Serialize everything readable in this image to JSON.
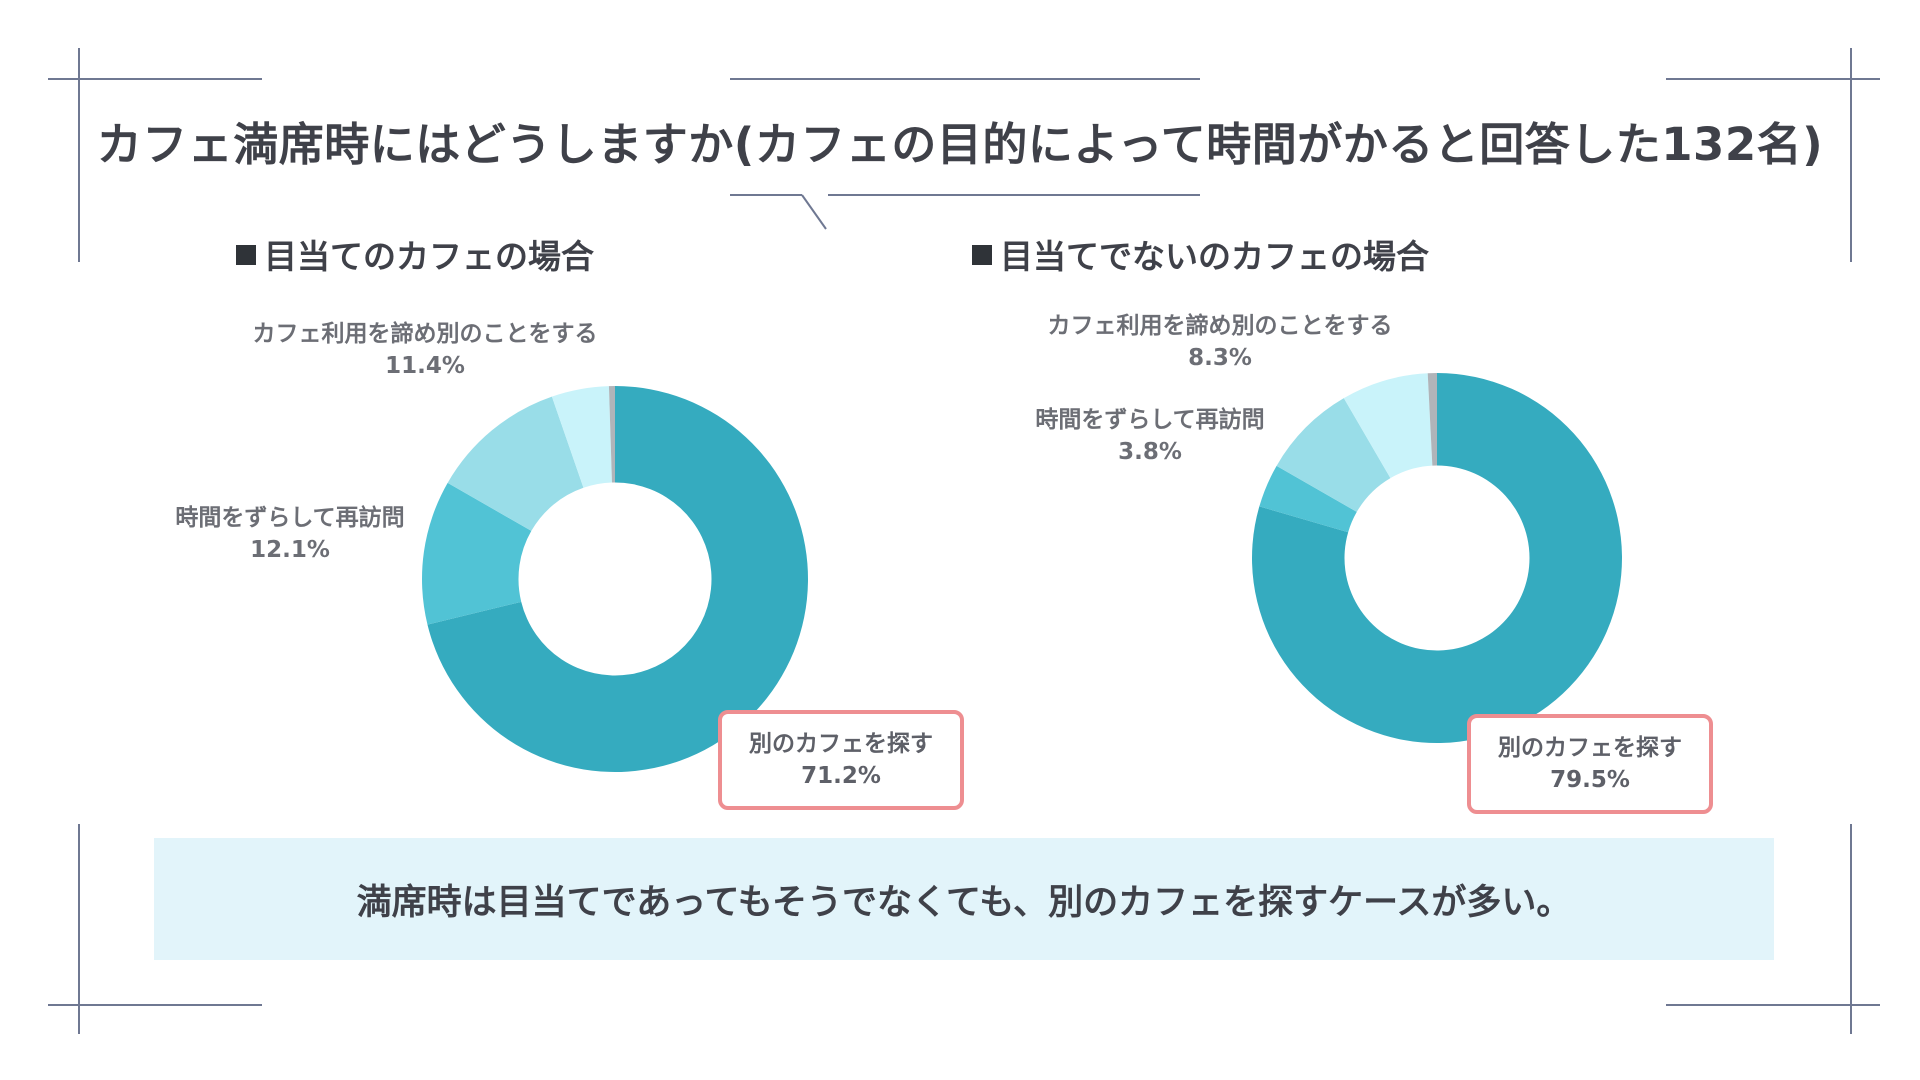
{
  "title": "カフェ満席時にはどうしますか(カフェの目的によって時間がかると回答した132名)",
  "summary": "満席時は目当てであってもそうでなくても、別のカフェを探すケースが多い。",
  "colors": {
    "frame": "#6f7892",
    "highlight_border": "#ee8e91",
    "summary_background": "#e2f4fa"
  },
  "chart_data": [
    {
      "type": "pie",
      "title": "目当てのカフェの場合",
      "donut": true,
      "unit": "%",
      "slices": [
        {
          "label": "別のカフェを探す",
          "value": 71.2,
          "value_label": "71.2%",
          "color": "#35abbf",
          "highlighted": true
        },
        {
          "label": "時間をずらして再訪問",
          "value": 12.1,
          "value_label": "12.1%",
          "color": "#51c3d5"
        },
        {
          "label": "カフェ利用を諦め別のことをする",
          "value": 11.4,
          "value_label": "11.4%",
          "color": "#99dde8"
        },
        {
          "label": "",
          "value": 4.8,
          "color": "#c9f3fa"
        },
        {
          "label": "",
          "value": 0.5,
          "color": "#b0b4b9"
        }
      ]
    },
    {
      "type": "pie",
      "title": "目当てでないのカフェの場合",
      "donut": true,
      "unit": "%",
      "slices": [
        {
          "label": "別のカフェを探す",
          "value": 79.5,
          "value_label": "79.5%",
          "color": "#35abbf",
          "highlighted": true
        },
        {
          "label": "時間をずらして再訪問",
          "value": 3.8,
          "value_label": "3.8%",
          "color": "#51c3d5"
        },
        {
          "label": "カフェ利用を諦め別のことをする",
          "value": 8.3,
          "value_label": "8.3%",
          "color": "#99dde8"
        },
        {
          "label": "",
          "value": 7.6,
          "color": "#c9f3fa"
        },
        {
          "label": "",
          "value": 0.8,
          "color": "#b0b4b9"
        }
      ]
    }
  ]
}
